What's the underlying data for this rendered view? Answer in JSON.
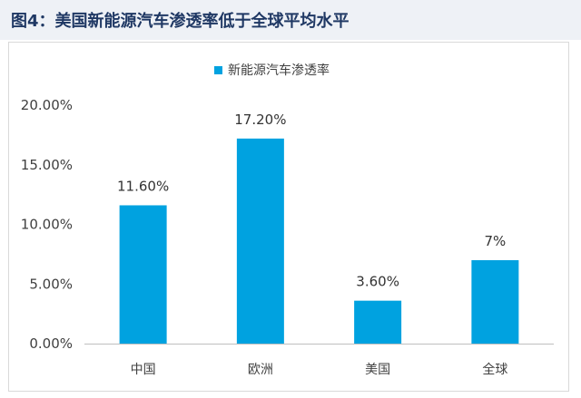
{
  "page": {
    "title": "图4：美国新能源汽车渗透率低于全球平均水平"
  },
  "chart_data": {
    "type": "bar",
    "categories": [
      "中国",
      "欧洲",
      "美国",
      "全球"
    ],
    "series": [
      {
        "name": "新能源汽车渗透率",
        "values": [
          11.6,
          17.2,
          3.6,
          7
        ],
        "data_labels": [
          "11.60%",
          "17.20%",
          "3.60%",
          "7%"
        ],
        "color": "#00a2e0"
      }
    ],
    "ylim": [
      0,
      20
    ],
    "yticks": [
      0,
      5,
      10,
      15,
      20
    ],
    "ytick_labels": [
      "0.00%",
      "5.00%",
      "10.00%",
      "15.00%",
      "20.00%"
    ],
    "grid": false,
    "legend_position": "top-center"
  }
}
